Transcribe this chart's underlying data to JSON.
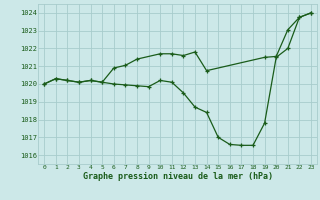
{
  "title": "Graphe pression niveau de la mer (hPa)",
  "background_color": "#cce8e8",
  "line_color": "#1a5c1a",
  "grid_color": "#a8cccc",
  "xlim": [
    -0.5,
    23.5
  ],
  "ylim": [
    1015.5,
    1024.5
  ],
  "yticks": [
    1016,
    1017,
    1018,
    1019,
    1020,
    1021,
    1022,
    1023,
    1024
  ],
  "xticks": [
    0,
    1,
    2,
    3,
    4,
    5,
    6,
    7,
    8,
    9,
    10,
    11,
    12,
    13,
    14,
    15,
    16,
    17,
    18,
    19,
    20,
    21,
    22,
    23
  ],
  "series1_x": [
    0,
    1,
    2,
    3,
    4,
    5,
    6,
    7,
    8,
    10,
    11,
    12,
    13,
    14,
    19,
    20,
    21,
    22,
    23
  ],
  "series1_y": [
    1020.0,
    1020.3,
    1020.2,
    1020.1,
    1020.2,
    1020.1,
    1020.9,
    1021.05,
    1021.4,
    1021.7,
    1021.7,
    1021.6,
    1021.8,
    1020.75,
    1021.5,
    1021.55,
    1023.05,
    1023.75,
    1024.0
  ],
  "series2_x": [
    0,
    1,
    2,
    3,
    4,
    5,
    6,
    7,
    8,
    9,
    10,
    11,
    12,
    13,
    14,
    15,
    16,
    17,
    18,
    19,
    20,
    21,
    22,
    23
  ],
  "series2_y": [
    1020.0,
    1020.3,
    1020.2,
    1020.1,
    1020.2,
    1020.1,
    1020.0,
    1019.95,
    1019.9,
    1019.85,
    1020.2,
    1020.1,
    1019.5,
    1018.7,
    1018.4,
    1017.0,
    1016.6,
    1016.55,
    1016.55,
    1017.8,
    1021.5,
    1022.0,
    1023.75,
    1024.0
  ]
}
